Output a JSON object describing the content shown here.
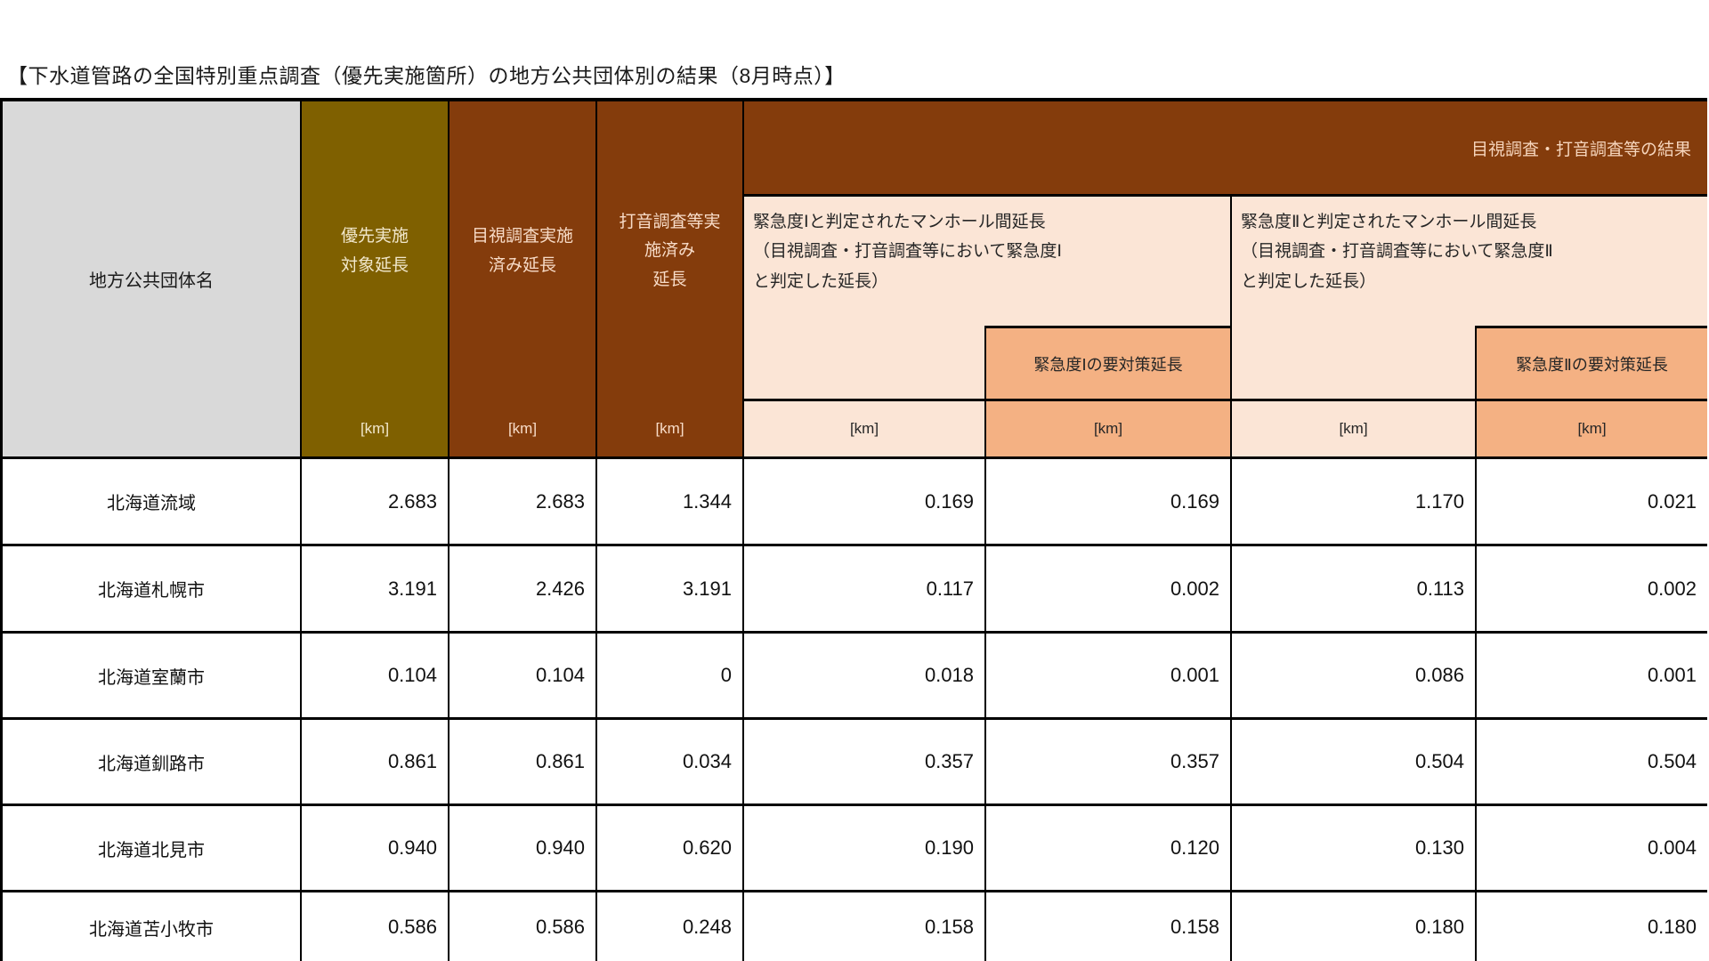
{
  "title": "【下水道管路の全国特別重点調査（優先実施箇所）の地方公共団体別の結果（8月時点）】",
  "table": {
    "name_header": "地方公共団体名",
    "unit": "[km]",
    "simple_columns": [
      {
        "label_lines": [
          "優先実施",
          "対象延長"
        ]
      },
      {
        "label_lines": [
          "目視調査実施",
          "済み延長"
        ]
      },
      {
        "label_lines": [
          "打音調査等実",
          "施済み",
          "延長"
        ]
      }
    ],
    "banner": "目視調査・打音調査等の結果",
    "groups": [
      {
        "label_lines": [
          "緊急度Ⅰと判定されたマンホール間延長",
          "（目視調査・打音調査等において緊急度Ⅰ",
          "と判定した延長）"
        ],
        "sub_label": "緊急度Ⅰの要対策延長"
      },
      {
        "label_lines": [
          "緊急度Ⅱと判定されたマンホール間延長",
          "（目視調査・打音調査等において緊急度Ⅱ",
          "と判定した延長）"
        ],
        "sub_label": "緊急度Ⅱの要対策延長"
      }
    ],
    "rows": [
      {
        "name": "北海道流域",
        "values": [
          "2.683",
          "2.683",
          "1.344",
          "0.169",
          "0.169",
          "1.170",
          "0.021"
        ]
      },
      {
        "name": "北海道札幌市",
        "values": [
          "3.191",
          "2.426",
          "3.191",
          "0.117",
          "0.002",
          "0.113",
          "0.002"
        ]
      },
      {
        "name": "北海道室蘭市",
        "values": [
          "0.104",
          "0.104",
          "0",
          "0.018",
          "0.001",
          "0.086",
          "0.001"
        ]
      },
      {
        "name": "北海道釧路市",
        "values": [
          "0.861",
          "0.861",
          "0.034",
          "0.357",
          "0.357",
          "0.504",
          "0.504"
        ]
      },
      {
        "name": "北海道北見市",
        "values": [
          "0.940",
          "0.940",
          "0.620",
          "0.190",
          "0.120",
          "0.130",
          "0.004"
        ]
      },
      {
        "name": "北海道苫小牧市",
        "values": [
          "0.586",
          "0.586",
          "0.248",
          "0.158",
          "0.158",
          "0.180",
          "0.180"
        ]
      }
    ],
    "colors": {
      "gray": "#D9D9D9",
      "olive": "#7F6000",
      "brown": "#843C0C",
      "peach_light": "#FBE5D6",
      "peach_dark": "#F4B183",
      "border": "#000000"
    }
  }
}
